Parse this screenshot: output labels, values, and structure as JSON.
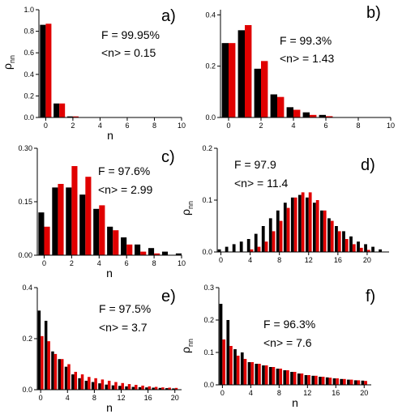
{
  "chart_data": [
    {
      "panel": "a)",
      "type": "bar",
      "annotations": [
        "F = 99.95%",
        "<n> = 0.15"
      ],
      "xlabel": "n",
      "ylabel": "ρnn",
      "xlim": [
        -0.5,
        10
      ],
      "ylim": [
        0,
        1.0
      ],
      "xticks": [
        0,
        2,
        4,
        6,
        8,
        10
      ],
      "yticks": [
        0.0,
        0.2,
        0.4,
        0.6,
        0.8,
        1.0
      ],
      "ytick_labels": [
        "0.0",
        "0.2",
        "0.4",
        "0.6",
        "0.8",
        "1.0"
      ],
      "x": [
        0,
        1,
        2,
        3,
        4,
        5,
        6,
        7,
        8,
        9,
        10
      ],
      "series": [
        {
          "color": "#000000",
          "values": [
            0.86,
            0.13,
            0.01,
            0,
            0,
            0,
            0,
            0,
            0,
            0,
            0
          ]
        },
        {
          "color": "#e00000",
          "values": [
            0.87,
            0.13,
            0.01,
            0,
            0,
            0,
            0,
            0,
            0,
            0,
            0
          ]
        }
      ]
    },
    {
      "panel": "b)",
      "type": "bar",
      "annotations": [
        "F = 99.3%",
        "<n> = 1.43"
      ],
      "xlabel": "",
      "ylabel": "",
      "xlim": [
        -0.5,
        10
      ],
      "ylim": [
        0,
        0.42
      ],
      "xticks": [
        0,
        2,
        4,
        6,
        8,
        10
      ],
      "yticks": [
        0.0,
        0.2,
        0.4
      ],
      "ytick_labels": [
        "0.0",
        "0.2",
        "0.4"
      ],
      "x": [
        0,
        1,
        2,
        3,
        4,
        5,
        6,
        7,
        8,
        9,
        10
      ],
      "series": [
        {
          "color": "#000000",
          "values": [
            0.29,
            0.34,
            0.19,
            0.09,
            0.04,
            0.02,
            0.01,
            0,
            0,
            0,
            0
          ]
        },
        {
          "color": "#e00000",
          "values": [
            0.29,
            0.36,
            0.22,
            0.08,
            0.03,
            0.01,
            0.005,
            0,
            0,
            0,
            0
          ]
        }
      ]
    },
    {
      "panel": "c)",
      "type": "bar",
      "annotations": [
        "F = 97.6%",
        "<n> = 2.99"
      ],
      "xlabel": "n",
      "ylabel": "",
      "xlim": [
        -0.5,
        10
      ],
      "ylim": [
        0,
        0.3
      ],
      "xticks": [
        0,
        2,
        4,
        6,
        8,
        10
      ],
      "yticks": [
        0.0,
        0.15,
        0.3
      ],
      "ytick_labels": [
        "0.00",
        "0.15",
        "0.30"
      ],
      "x": [
        0,
        1,
        2,
        3,
        4,
        5,
        6,
        7,
        8,
        9,
        10
      ],
      "series": [
        {
          "color": "#000000",
          "values": [
            0.12,
            0.19,
            0.19,
            0.17,
            0.13,
            0.08,
            0.05,
            0.03,
            0.02,
            0.01,
            0.005
          ]
        },
        {
          "color": "#e00000",
          "values": [
            0.08,
            0.2,
            0.25,
            0.22,
            0.14,
            0.07,
            0.03,
            0.01,
            0.005,
            0,
            0
          ]
        }
      ]
    },
    {
      "panel": "d)",
      "type": "bar",
      "annotations": [
        "F = 97.9",
        "<n> = 11.4"
      ],
      "xlabel": "",
      "ylabel": "ρnn",
      "xlim": [
        -0.5,
        23
      ],
      "ylim": [
        0,
        0.2
      ],
      "xticks": [
        0,
        4,
        8,
        12,
        16,
        20
      ],
      "yticks": [
        0.0,
        0.1,
        0.2
      ],
      "ytick_labels": [
        "0.0",
        "0.1",
        "0.2"
      ],
      "x": [
        0,
        1,
        2,
        3,
        4,
        5,
        6,
        7,
        8,
        9,
        10,
        11,
        12,
        13,
        14,
        15,
        16,
        17,
        18,
        19,
        20,
        21,
        22
      ],
      "series": [
        {
          "color": "#000000",
          "values": [
            0.005,
            0.01,
            0.015,
            0.02,
            0.025,
            0.035,
            0.05,
            0.065,
            0.08,
            0.095,
            0.105,
            0.11,
            0.105,
            0.095,
            0.08,
            0.065,
            0.05,
            0.04,
            0.03,
            0.02,
            0.015,
            0.01,
            0.005
          ]
        },
        {
          "color": "#e00000",
          "values": [
            0,
            0,
            0,
            0,
            0.005,
            0.01,
            0.02,
            0.04,
            0.06,
            0.085,
            0.105,
            0.115,
            0.115,
            0.1,
            0.08,
            0.06,
            0.04,
            0.025,
            0.015,
            0.008,
            0.004,
            0,
            0
          ]
        }
      ]
    },
    {
      "panel": "e)",
      "type": "bar",
      "annotations": [
        "F = 97.5%",
        "<n> = 3.7"
      ],
      "xlabel": "n",
      "ylabel": "",
      "xlim": [
        -0.5,
        21
      ],
      "ylim": [
        0,
        0.4
      ],
      "xticks": [
        0,
        4,
        8,
        12,
        16,
        20
      ],
      "yticks": [
        0.0,
        0.2,
        0.4
      ],
      "ytick_labels": [
        "0.0",
        "0.2",
        "0.4"
      ],
      "x": [
        0,
        1,
        2,
        3,
        4,
        5,
        6,
        7,
        8,
        9,
        10,
        11,
        12,
        13,
        14,
        15,
        16,
        17,
        18,
        19,
        20
      ],
      "series": [
        {
          "color": "#000000",
          "values": [
            0.31,
            0.27,
            0.15,
            0.12,
            0.09,
            0.06,
            0.045,
            0.035,
            0.03,
            0.025,
            0.02,
            0.017,
            0.015,
            0.013,
            0.011,
            0.01,
            0.009,
            0.008,
            0.007,
            0.006,
            0.005
          ]
        },
        {
          "color": "#e00000",
          "values": [
            0.21,
            0.19,
            0.14,
            0.12,
            0.1,
            0.07,
            0.06,
            0.05,
            0.045,
            0.04,
            0.035,
            0.03,
            0.026,
            0.022,
            0.019,
            0.016,
            0.013,
            0.011,
            0.009,
            0.008,
            0.007
          ]
        }
      ]
    },
    {
      "panel": "f)",
      "type": "bar",
      "annotations": [
        "F = 96.3%",
        "<n> = 7.6"
      ],
      "xlabel": "n",
      "ylabel": "ρnn",
      "xlim": [
        -0.5,
        21
      ],
      "ylim": [
        0,
        0.3
      ],
      "xticks": [
        0,
        4,
        8,
        12,
        16,
        20
      ],
      "yticks": [
        0.0,
        0.1,
        0.2,
        0.3
      ],
      "ytick_labels": [
        "0.0",
        "0.1",
        "0.2",
        "0.3"
      ],
      "x": [
        0,
        1,
        2,
        3,
        4,
        5,
        6,
        7,
        8,
        9,
        10,
        11,
        12,
        13,
        14,
        15,
        16,
        17,
        18,
        19,
        20
      ],
      "series": [
        {
          "color": "#000000",
          "values": [
            0.25,
            0.2,
            0.11,
            0.1,
            0.07,
            0.065,
            0.06,
            0.055,
            0.05,
            0.045,
            0.04,
            0.035,
            0.03,
            0.028,
            0.025,
            0.023,
            0.02,
            0.018,
            0.016,
            0.014,
            0.013
          ]
        },
        {
          "color": "#e00000",
          "values": [
            0.14,
            0.12,
            0.09,
            0.08,
            0.07,
            0.065,
            0.06,
            0.055,
            0.05,
            0.045,
            0.04,
            0.035,
            0.03,
            0.028,
            0.025,
            0.022,
            0.02,
            0.018,
            0.016,
            0.014,
            0.012
          ]
        }
      ]
    }
  ]
}
